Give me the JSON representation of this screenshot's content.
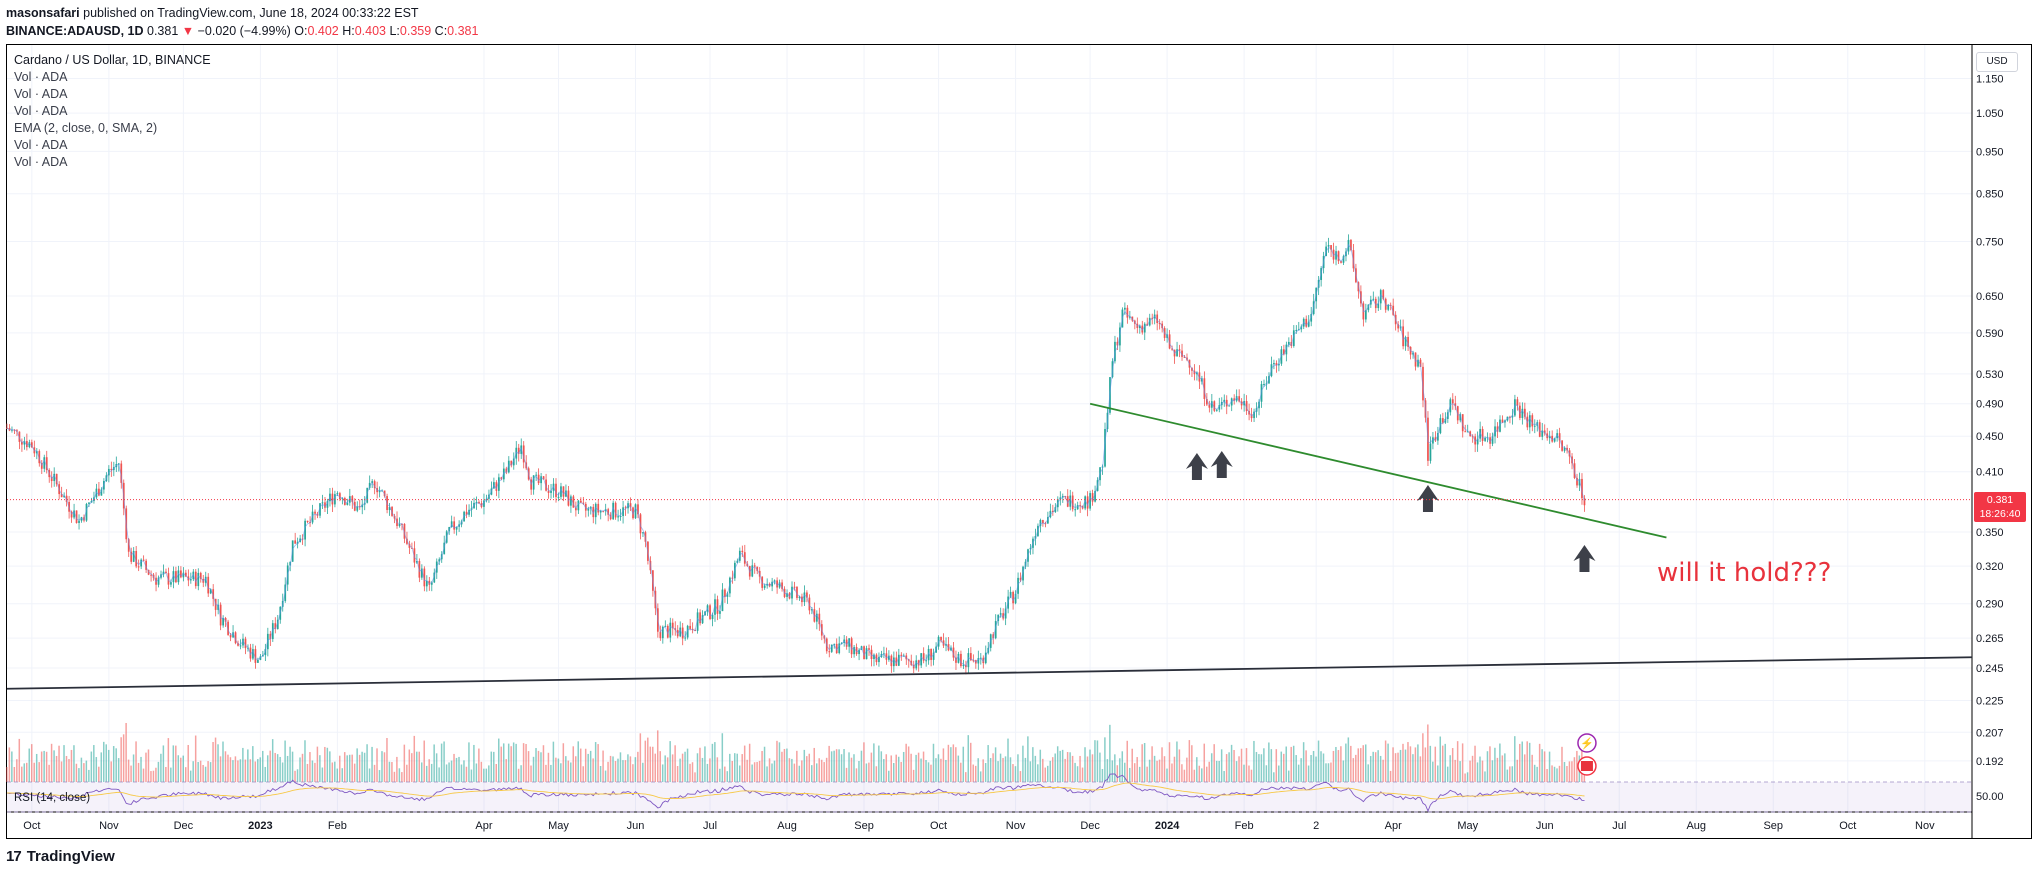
{
  "header": {
    "author": "masonsafari",
    "published": "published on TradingView.com, June 18, 2024 00:33:22 EST",
    "symbol": "BINANCE:ADAUSD, 1D",
    "last": "0.381",
    "change_arrow": "▼",
    "change": "−0.020 (−4.99%)",
    "o_label": "O:",
    "o_value": "0.402",
    "h_label": "H:",
    "h_value": "0.403",
    "l_label": "L:",
    "l_value": "0.359",
    "c_label": "C:",
    "c_value": "0.381"
  },
  "legend": {
    "title": "Cardano / US Dollar, 1D, BINANCE",
    "indicators": [
      "Vol · ADA",
      "Vol · ADA",
      "Vol · ADA",
      "EMA (2, close, 0, SMA, 2)",
      "Vol · ADA",
      "Vol · ADA"
    ]
  },
  "currency": "USD",
  "price_badge": {
    "price": "0.381",
    "countdown": "18:26:40"
  },
  "annotation": "will it hold???",
  "rsi_label": "RSI (14, close)",
  "rsi_axis_value": "50.00",
  "footer": {
    "brand": "TradingView",
    "logo_glyph": "17"
  },
  "colors": {
    "up": "#26a69a",
    "down": "#ef5350",
    "trendline_green": "#2e8b2e",
    "support_line": "#2a2e39",
    "arrow": "#3d4049",
    "annotation": "#e8323c",
    "rsi": "#7e57c2",
    "rsi_ma": "#f7c948"
  },
  "chart_data": {
    "type": "candlestick",
    "title": "Cardano / US Dollar, 1D, BINANCE",
    "y_scale": "log",
    "y_ticks": [
      "1.150",
      "1.050",
      "0.950",
      "0.850",
      "0.750",
      "0.650",
      "0.590",
      "0.530",
      "0.490",
      "0.450",
      "0.410",
      "0.350",
      "0.320",
      "0.290",
      "0.265",
      "0.245",
      "0.225",
      "0.207",
      "0.192"
    ],
    "x_ticks": [
      "Oct",
      "Nov",
      "Dec",
      "2023",
      "Feb",
      "Apr",
      "May",
      "Jun",
      "Jul",
      "Aug",
      "Sep",
      "Oct",
      "Nov",
      "Dec",
      "2024",
      "Feb",
      "2",
      "Apr",
      "May",
      "Jun",
      "Jul",
      "Aug",
      "Sep",
      "Oct",
      "Nov"
    ],
    "x_tick_dates": [
      "2022-10-01",
      "2022-11-01",
      "2022-12-01",
      "2023-01-01",
      "2023-02-01",
      "2023-04-01",
      "2023-05-01",
      "2023-06-01",
      "2023-07-01",
      "2023-08-01",
      "2023-09-01",
      "2023-10-01",
      "2023-11-01",
      "2023-12-01",
      "2024-01-01",
      "2024-02-01",
      "2024-03-01",
      "2024-04-01",
      "2024-05-01",
      "2024-06-01",
      "2024-07-01",
      "2024-08-01",
      "2024-09-01",
      "2024-10-01",
      "2024-11-01"
    ],
    "x_range": [
      "2022-09-21",
      "2024-11-20"
    ],
    "y_range": [
      0.18,
      1.2
    ],
    "close_path": [
      [
        "2022-09-21",
        0.46
      ],
      [
        "2022-10-01",
        0.44
      ],
      [
        "2022-10-10",
        0.4
      ],
      [
        "2022-10-20",
        0.36
      ],
      [
        "2022-10-25",
        0.38
      ],
      [
        "2022-11-01",
        0.41
      ],
      [
        "2022-11-05",
        0.42
      ],
      [
        "2022-11-09",
        0.33
      ],
      [
        "2022-11-20",
        0.31
      ],
      [
        "2022-12-01",
        0.31
      ],
      [
        "2022-12-10",
        0.31
      ],
      [
        "2022-12-16",
        0.28
      ],
      [
        "2022-12-25",
        0.26
      ],
      [
        "2023-01-01",
        0.25
      ],
      [
        "2023-01-08",
        0.28
      ],
      [
        "2023-01-14",
        0.34
      ],
      [
        "2023-01-25",
        0.37
      ],
      [
        "2023-02-01",
        0.39
      ],
      [
        "2023-02-10",
        0.37
      ],
      [
        "2023-02-16",
        0.4
      ],
      [
        "2023-02-25",
        0.36
      ],
      [
        "2023-03-10",
        0.3
      ],
      [
        "2023-03-18",
        0.35
      ],
      [
        "2023-03-25",
        0.37
      ],
      [
        "2023-04-01",
        0.38
      ],
      [
        "2023-04-10",
        0.41
      ],
      [
        "2023-04-16",
        0.44
      ],
      [
        "2023-04-20",
        0.4
      ],
      [
        "2023-05-01",
        0.39
      ],
      [
        "2023-05-10",
        0.37
      ],
      [
        "2023-05-20",
        0.37
      ],
      [
        "2023-06-01",
        0.37
      ],
      [
        "2023-06-05",
        0.34
      ],
      [
        "2023-06-10",
        0.27
      ],
      [
        "2023-06-20",
        0.27
      ],
      [
        "2023-06-28",
        0.28
      ],
      [
        "2023-07-05",
        0.29
      ],
      [
        "2023-07-13",
        0.33
      ],
      [
        "2023-07-20",
        0.31
      ],
      [
        "2023-08-01",
        0.3
      ],
      [
        "2023-08-10",
        0.29
      ],
      [
        "2023-08-17",
        0.26
      ],
      [
        "2023-08-25",
        0.26
      ],
      [
        "2023-09-05",
        0.25
      ],
      [
        "2023-09-15",
        0.25
      ],
      [
        "2023-09-25",
        0.25
      ],
      [
        "2023-10-01",
        0.26
      ],
      [
        "2023-10-10",
        0.25
      ],
      [
        "2023-10-18",
        0.25
      ],
      [
        "2023-10-23",
        0.27
      ],
      [
        "2023-11-01",
        0.3
      ],
      [
        "2023-11-10",
        0.36
      ],
      [
        "2023-11-20",
        0.38
      ],
      [
        "2023-12-01",
        0.38
      ],
      [
        "2023-12-06",
        0.42
      ],
      [
        "2023-12-10",
        0.55
      ],
      [
        "2023-12-14",
        0.62
      ],
      [
        "2023-12-20",
        0.6
      ],
      [
        "2023-12-28",
        0.61
      ],
      [
        "2024-01-03",
        0.56
      ],
      [
        "2024-01-10",
        0.55
      ],
      [
        "2024-01-20",
        0.48
      ],
      [
        "2024-01-28",
        0.5
      ],
      [
        "2024-02-05",
        0.48
      ],
      [
        "2024-02-12",
        0.54
      ],
      [
        "2024-02-20",
        0.58
      ],
      [
        "2024-02-28",
        0.62
      ],
      [
        "2024-03-05",
        0.74
      ],
      [
        "2024-03-10",
        0.72
      ],
      [
        "2024-03-14",
        0.74
      ],
      [
        "2024-03-20",
        0.62
      ],
      [
        "2024-03-28",
        0.65
      ],
      [
        "2024-04-05",
        0.58
      ],
      [
        "2024-04-12",
        0.54
      ],
      [
        "2024-04-15",
        0.43
      ],
      [
        "2024-04-20",
        0.47
      ],
      [
        "2024-04-25",
        0.49
      ],
      [
        "2024-05-01",
        0.45
      ],
      [
        "2024-05-10",
        0.45
      ],
      [
        "2024-05-20",
        0.49
      ],
      [
        "2024-05-28",
        0.46
      ],
      [
        "2024-06-05",
        0.45
      ],
      [
        "2024-06-12",
        0.42
      ],
      [
        "2024-06-17",
        0.381
      ]
    ],
    "trendlines": [
      {
        "name": "green-trendline",
        "from": [
          "2023-12-01",
          0.49
        ],
        "to": [
          "2024-07-20",
          0.345
        ]
      },
      {
        "name": "support-line",
        "from": [
          "2022-09-21",
          0.232
        ],
        "to": [
          "2024-11-20",
          0.252
        ]
      }
    ],
    "arrows": [
      "2024-01-13",
      "2024-01-23",
      "2024-04-15",
      "2024-06-17"
    ],
    "last_price": 0.381
  }
}
